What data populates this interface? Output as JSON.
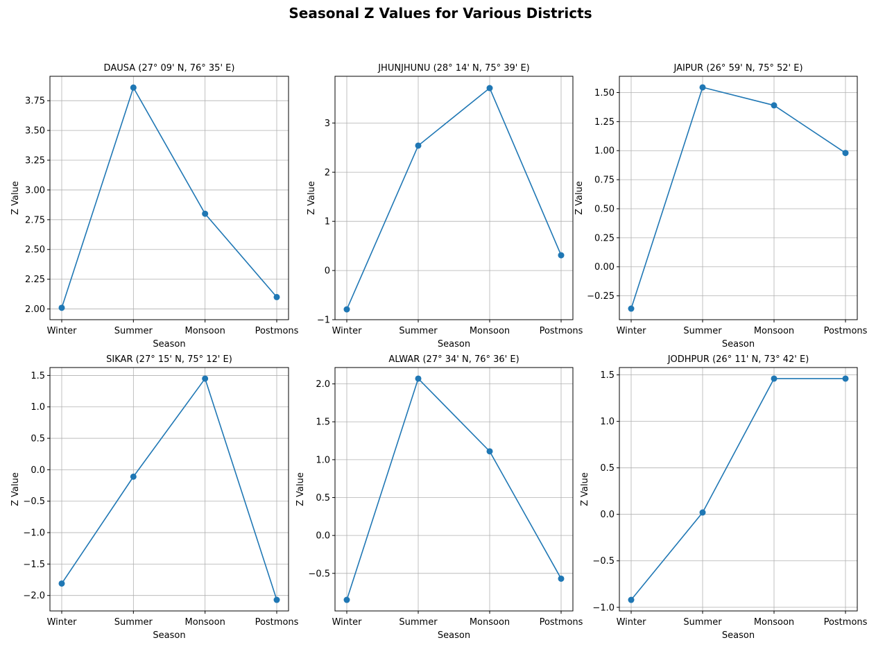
{
  "figure": {
    "title": "Seasonal Z Values for Various Districts"
  },
  "colors": {
    "series": "#1f77b4",
    "grid": "#b0b0b0"
  },
  "chart_data": [
    {
      "type": "line",
      "title": "DAUSA (27° 09' N, 76° 35' E)",
      "xlabel": "Season",
      "ylabel": "Z Value",
      "categories": [
        "Winter",
        "Summer",
        "Monsoon",
        "Postmons"
      ],
      "values": [
        2.01,
        3.86,
        2.8,
        2.1
      ],
      "ylim": [
        1.91,
        3.955
      ],
      "yticks": [
        2.0,
        2.25,
        2.5,
        2.75,
        3.0,
        3.25,
        3.5,
        3.75
      ],
      "ytick_labels": [
        "2.00",
        "2.25",
        "2.50",
        "2.75",
        "3.00",
        "3.25",
        "3.50",
        "3.75"
      ],
      "grid": true,
      "marker": "circle"
    },
    {
      "type": "line",
      "title": "JHUNJHUNU (28° 14' N, 75° 39' E)",
      "xlabel": "Season",
      "ylabel": "Z Value",
      "categories": [
        "Winter",
        "Summer",
        "Monsoon",
        "Postmons"
      ],
      "values": [
        -0.79,
        2.54,
        3.71,
        0.31
      ],
      "ylim": [
        -1.0,
        3.95
      ],
      "yticks": [
        -1,
        0,
        1,
        2,
        3
      ],
      "ytick_labels": [
        "−1",
        "0",
        "1",
        "2",
        "3"
      ],
      "grid": true,
      "marker": "circle"
    },
    {
      "type": "line",
      "title": "JAIPUR (26° 59' N, 75° 52' E)",
      "xlabel": "Season",
      "ylabel": "Z Value",
      "categories": [
        "Winter",
        "Summer",
        "Monsoon",
        "Postmons"
      ],
      "values": [
        -0.36,
        1.545,
        1.39,
        0.98
      ],
      "ylim": [
        -0.4553,
        1.6403
      ],
      "yticks": [
        -0.25,
        0.0,
        0.25,
        0.5,
        0.75,
        1.0,
        1.25,
        1.5
      ],
      "ytick_labels": [
        "−0.25",
        "0.00",
        "0.25",
        "0.50",
        "0.75",
        "1.00",
        "1.25",
        "1.50"
      ],
      "grid": true,
      "marker": "circle"
    },
    {
      "type": "line",
      "title": "SIKAR (27° 15' N, 75° 12' E)",
      "xlabel": "Season",
      "ylabel": "Z Value",
      "categories": [
        "Winter",
        "Summer",
        "Monsoon",
        "Postmons"
      ],
      "values": [
        -1.81,
        -0.11,
        1.45,
        -2.07
      ],
      "ylim": [
        -2.246,
        1.626
      ],
      "yticks": [
        -2.0,
        -1.5,
        -1.0,
        -0.5,
        0.0,
        0.5,
        1.0,
        1.5
      ],
      "ytick_labels": [
        "−2.0",
        "−1.5",
        "−1.0",
        "−0.5",
        "0.0",
        "0.5",
        "1.0",
        "1.5"
      ],
      "grid": true,
      "marker": "circle"
    },
    {
      "type": "line",
      "title": "ALWAR (27° 34' N, 76° 36' E)",
      "xlabel": "Season",
      "ylabel": "Z Value",
      "categories": [
        "Winter",
        "Summer",
        "Monsoon",
        "Postmons"
      ],
      "values": [
        -0.85,
        2.07,
        1.11,
        -0.57
      ],
      "ylim": [
        -0.996,
        2.216
      ],
      "yticks": [
        -0.5,
        0.0,
        0.5,
        1.0,
        1.5,
        2.0
      ],
      "ytick_labels": [
        "−0.5",
        "0.0",
        "0.5",
        "1.0",
        "1.5",
        "2.0"
      ],
      "grid": true,
      "marker": "circle"
    },
    {
      "type": "line",
      "title": "JODHPUR (26° 11' N, 73° 42' E)",
      "xlabel": "Season",
      "ylabel": "Z Value",
      "categories": [
        "Winter",
        "Summer",
        "Monsoon",
        "Postmons"
      ],
      "values": [
        -0.92,
        0.02,
        1.46,
        1.46
      ],
      "ylim": [
        -1.039,
        1.579
      ],
      "yticks": [
        -1.0,
        -0.5,
        0.0,
        0.5,
        1.0,
        1.5
      ],
      "ytick_labels": [
        "−1.0",
        "−0.5",
        "0.0",
        "0.5",
        "1.0",
        "1.5"
      ],
      "grid": true,
      "marker": "circle"
    }
  ]
}
